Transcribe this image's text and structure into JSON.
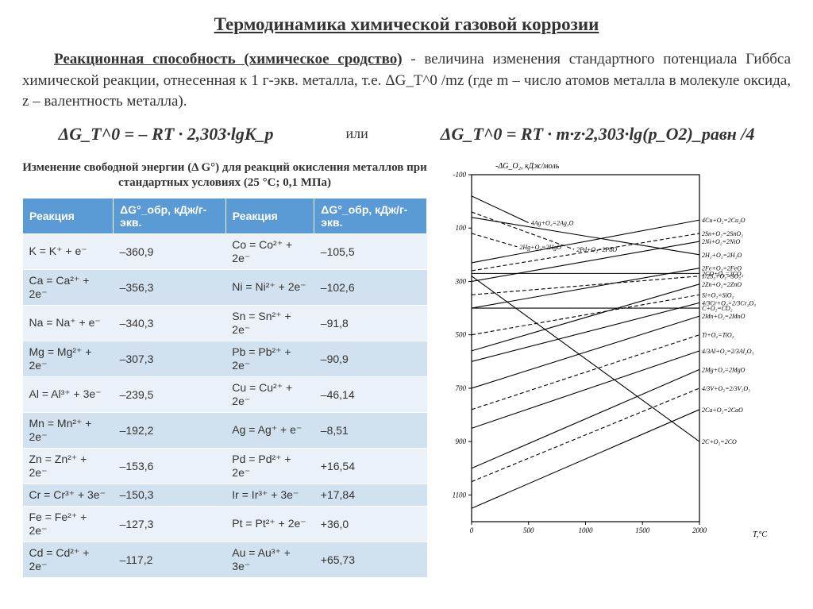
{
  "title": "Термодинамика химической газовой коррозии",
  "para_lead": "Реакционная способность (химическое сродство)",
  "para_rest": " - величина изменения стандартного потенциала Гиббса химической реакции, отнесенная к 1 г-экв. металла, т.е. ΔG_T^0 /mz (где m – число атомов металла в молекуле оксида, z – валентность металла).",
  "eq1": "ΔG_T^0 = – RT · 2,303·lgK_p",
  "eq_or": "или",
  "eq2": "ΔG_T^0 = RT · m·z·2,303·lg(p_O2)_равн /4",
  "caption": "Изменение свободной энергии (Δ G°) для реакций окисления металлов при стандартных условиях (25 °C; 0,1 МПа)",
  "table": {
    "headers": [
      "Реакция",
      "ΔG°_обр, кДж/г-экв.",
      "Реакция",
      "ΔG°_обр, кДж/г-экв."
    ],
    "rows": [
      [
        "K = K⁺ + e⁻",
        "–360,9",
        "Co = Co²⁺ + 2e⁻",
        "–105,5"
      ],
      [
        "Ca = Ca²⁺ + 2e⁻",
        "–356,3",
        "Ni = Ni²⁺ + 2e⁻",
        "–102,6"
      ],
      [
        "Na = Na⁺ + e⁻",
        "–340,3",
        "Sn = Sn²⁺ + 2e⁻",
        "–91,8"
      ],
      [
        "Mg = Mg²⁺ + 2e⁻",
        "–307,3",
        "Pb = Pb²⁺ + 2e⁻",
        "–90,9"
      ],
      [
        "Al = Al³⁺ + 3e⁻",
        "–239,5",
        "Cu = Cu²⁺ + 2e⁻",
        "–46,14"
      ],
      [
        "Mn = Mn²⁺ + 2e⁻",
        "–192,2",
        "Ag = Ag⁺ + e⁻",
        "–8,51"
      ],
      [
        "Zn = Zn²⁺ + 2e⁻",
        "–153,6",
        "Pd = Pd²⁺ + 2e⁻",
        "+16,54"
      ],
      [
        "Cr = Cr³⁺ + 3e⁻",
        "–150,3",
        "Ir = Ir³⁺ + 3e⁻",
        "+17,84"
      ],
      [
        "Fe = Fe²⁺ + 2e⁻",
        "–127,3",
        "Pt = Pt²⁺ + 2e⁻",
        "+36,0"
      ],
      [
        "Cd = Cd²⁺ + 2e⁻",
        "–117,2",
        "Au = Au³⁺ + 3e⁻",
        "+65,73"
      ]
    ],
    "header_bg": "#5b9bd5",
    "row_odd_bg": "#eaf1f8",
    "row_even_bg": "#d2e1ef"
  },
  "chart": {
    "type": "ellingham-line-plot",
    "ylabel": "-ΔG_O₂, кДж/моль",
    "xlabel": "T,°C",
    "xlim": [
      0,
      2000
    ],
    "xtick_step": 500,
    "ylim": [
      -100,
      1200
    ],
    "ytick_step": 200,
    "y_inverted": true,
    "background_color": "#ffffff",
    "axis_color": "#000000",
    "line_color": "#000000",
    "font_size": 9,
    "lines": [
      {
        "label": "4Ag+O₂=2Ag₂O",
        "x": [
          0,
          500
        ],
        "y": [
          -20,
          80
        ],
        "dash": false
      },
      {
        "label": "2Pd+O₂=2PdO",
        "x": [
          0,
          900
        ],
        "y": [
          40,
          180
        ],
        "dash": true
      },
      {
        "label": "2H₂+O₂=2H₂O",
        "x": [
          0,
          2000
        ],
        "y": [
          60,
          200
        ],
        "dash": false
      },
      {
        "label": "2Hg+O₂=2HgO",
        "x": [
          0,
          400
        ],
        "y": [
          120,
          170
        ],
        "dash": true
      },
      {
        "label": "4Cu+O₂=2Cu₂O",
        "x": [
          0,
          2000
        ],
        "y": [
          230,
          70
        ],
        "dash": false
      },
      {
        "label": "2Sn+O₂=2SnO₂",
        "x": [
          0,
          2000
        ],
        "y": [
          260,
          120
        ],
        "dash": true
      },
      {
        "label": "2CO+O₂=2CO₂",
        "x": [
          0,
          2000
        ],
        "y": [
          270,
          270
        ],
        "dash": false
      },
      {
        "label": "2Ni+O₂=2NiO",
        "x": [
          0,
          2000
        ],
        "y": [
          300,
          150
        ],
        "dash": false
      },
      {
        "label": "1/2S₂+O₂=SO₂",
        "x": [
          0,
          2000
        ],
        "y": [
          350,
          280
        ],
        "dash": true
      },
      {
        "label": "2Fe+O₂=2FeO",
        "x": [
          0,
          2000
        ],
        "y": [
          400,
          250
        ],
        "dash": false
      },
      {
        "label": "C+O₂=CO₂",
        "x": [
          0,
          2000
        ],
        "y": [
          400,
          400
        ],
        "dash": false
      },
      {
        "label": "Si+O₂=SiO₂",
        "x": [
          0,
          2000
        ],
        "y": [
          500,
          350
        ],
        "dash": true
      },
      {
        "label": "2Zn+O₂=2ZnO",
        "x": [
          0,
          2000
        ],
        "y": [
          560,
          310
        ],
        "dash": false
      },
      {
        "label": "4/3Cr+O₂=2/3Cr₂O₃",
        "x": [
          0,
          2000
        ],
        "y": [
          600,
          380
        ],
        "dash": false
      },
      {
        "label": "2Mn+O₂=2MnO",
        "x": [
          0,
          2000
        ],
        "y": [
          700,
          430
        ],
        "dash": false
      },
      {
        "label": "Ti+O₂=TiO₂",
        "x": [
          0,
          2000
        ],
        "y": [
          780,
          500
        ],
        "dash": true
      },
      {
        "label": "4/3Al+O₂=2/3Al₂O₃",
        "x": [
          0,
          2000
        ],
        "y": [
          850,
          560
        ],
        "dash": false
      },
      {
        "label": "2C+O₂=2CO",
        "x": [
          0,
          2000
        ],
        "y": [
          280,
          900
        ],
        "dash": false
      },
      {
        "label": "2Mg+O₂=2MgO",
        "x": [
          0,
          2000
        ],
        "y": [
          1000,
          630
        ],
        "dash": false
      },
      {
        "label": "4/3V+O₂=2/3V₂O₃",
        "x": [
          0,
          2000
        ],
        "y": [
          1050,
          700
        ],
        "dash": true
      },
      {
        "label": "2Ca+O₂=2CaO",
        "x": [
          0,
          2000
        ],
        "y": [
          1150,
          780
        ],
        "dash": false
      }
    ]
  }
}
